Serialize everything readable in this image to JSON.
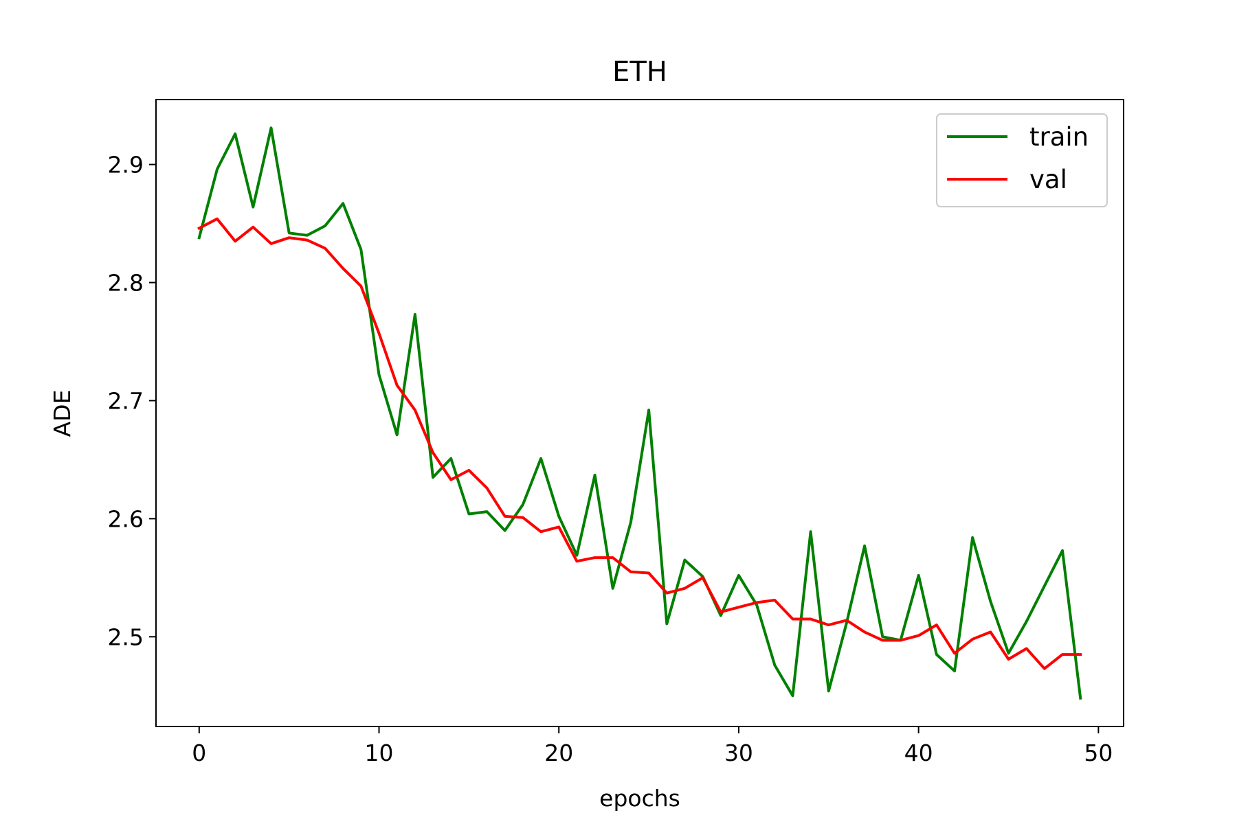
{
  "chart_data": {
    "type": "line",
    "title": "ETH",
    "xlabel": "epochs",
    "ylabel": "ADE",
    "xlim": [
      -2.4,
      51.4
    ],
    "ylim": [
      2.424,
      2.955
    ],
    "xticks": [
      0,
      10,
      20,
      30,
      40,
      50
    ],
    "yticks": [
      2.5,
      2.6,
      2.7,
      2.8,
      2.9
    ],
    "xtick_labels": [
      "0",
      "10",
      "20",
      "30",
      "40",
      "50"
    ],
    "ytick_labels": [
      "2.5",
      "2.6",
      "2.7",
      "2.8",
      "2.9"
    ],
    "grid": false,
    "legend_position": "top-right",
    "x": [
      0,
      1,
      2,
      3,
      4,
      5,
      6,
      7,
      8,
      9,
      10,
      11,
      12,
      13,
      14,
      15,
      16,
      17,
      18,
      19,
      20,
      21,
      22,
      23,
      24,
      25,
      26,
      27,
      28,
      29,
      30,
      31,
      32,
      33,
      34,
      35,
      36,
      37,
      38,
      39,
      40,
      41,
      42,
      43,
      44,
      45,
      46,
      47,
      48,
      49
    ],
    "series": [
      {
        "name": "train",
        "color": "#008000",
        "values": [
          2.838,
          2.896,
          2.926,
          2.864,
          2.931,
          2.842,
          2.84,
          2.848,
          2.867,
          2.828,
          2.722,
          2.671,
          2.773,
          2.635,
          2.651,
          2.604,
          2.606,
          2.59,
          2.612,
          2.651,
          2.602,
          2.569,
          2.637,
          2.541,
          2.597,
          2.692,
          2.511,
          2.565,
          2.551,
          2.518,
          2.552,
          2.527,
          2.476,
          2.45,
          2.589,
          2.454,
          2.512,
          2.577,
          2.5,
          2.497,
          2.552,
          2.485,
          2.471,
          2.584,
          2.53,
          2.486,
          2.513,
          2.543,
          2.573,
          2.448
        ]
      },
      {
        "name": "val",
        "color": "#ff0000",
        "values": [
          2.846,
          2.854,
          2.835,
          2.847,
          2.833,
          2.838,
          2.836,
          2.829,
          2.812,
          2.797,
          2.757,
          2.713,
          2.692,
          2.656,
          2.633,
          2.641,
          2.626,
          2.602,
          2.601,
          2.589,
          2.593,
          2.564,
          2.567,
          2.567,
          2.555,
          2.554,
          2.537,
          2.541,
          2.55,
          2.521,
          2.525,
          2.529,
          2.531,
          2.515,
          2.515,
          2.51,
          2.514,
          2.504,
          2.497,
          2.497,
          2.501,
          2.51,
          2.486,
          2.498,
          2.504,
          2.481,
          2.49,
          2.473,
          2.485,
          2.485
        ]
      }
    ]
  }
}
